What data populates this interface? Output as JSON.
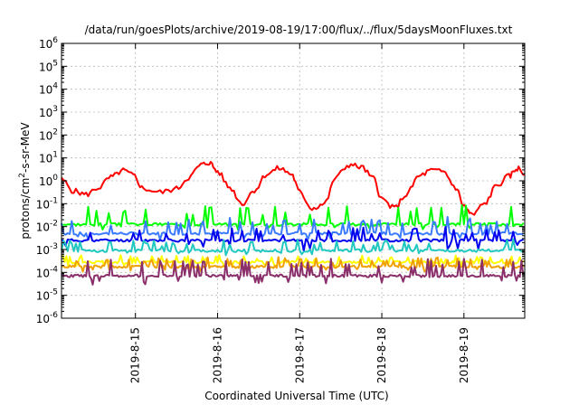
{
  "chart_data": {
    "type": "line",
    "title": "/data/run/goesPlots/archive/2019-08-19/17:00/flux/../flux/5daysMoonFluxes.txt",
    "xlabel": "Coordinated Universal Time (UTC)",
    "ylabel_main": "protons/cm",
    "ylabel_sup": "2",
    "ylabel_rest": "-s-sr-MeV",
    "y_scale": "log",
    "ylim_exp": [
      -6,
      6
    ],
    "xlim_days": [
      14.1,
      19.74
    ],
    "grid": true,
    "y_ticks": [
      {
        "exp": -6,
        "label": "10",
        "sup": "-6"
      },
      {
        "exp": -5,
        "label": "10",
        "sup": "-5"
      },
      {
        "exp": -4,
        "label": "10",
        "sup": "-4"
      },
      {
        "exp": -3,
        "label": "10",
        "sup": "-3"
      },
      {
        "exp": -2,
        "label": "10",
        "sup": "-2"
      },
      {
        "exp": -1,
        "label": "10",
        "sup": "-1"
      },
      {
        "exp": 0,
        "label": "10",
        "sup": "0"
      },
      {
        "exp": 1,
        "label": "10",
        "sup": "1"
      },
      {
        "exp": 2,
        "label": "10",
        "sup": "2"
      },
      {
        "exp": 3,
        "label": "10",
        "sup": "3"
      },
      {
        "exp": 4,
        "label": "10",
        "sup": "4"
      },
      {
        "exp": 5,
        "label": "10",
        "sup": "5"
      },
      {
        "exp": 6,
        "label": "10",
        "sup": "6"
      }
    ],
    "x_ticks": [
      {
        "day": 15,
        "label": "2019-8-15"
      },
      {
        "day": 16,
        "label": "2019-8-16"
      },
      {
        "day": 17,
        "label": "2019-8-17"
      },
      {
        "day": 18,
        "label": "2019-8-18"
      },
      {
        "day": 19,
        "label": "2019-8-19"
      }
    ],
    "series": [
      {
        "color": "#ff0000",
        "kind": "smooth",
        "points": [
          [
            14.1,
            0.05
          ],
          [
            14.25,
            -0.45
          ],
          [
            14.4,
            -0.6
          ],
          [
            14.55,
            -0.3
          ],
          [
            14.7,
            0.15
          ],
          [
            14.85,
            0.45
          ],
          [
            14.97,
            0.25
          ],
          [
            15.1,
            -0.35
          ],
          [
            15.3,
            -0.5
          ],
          [
            15.5,
            -0.35
          ],
          [
            15.65,
            0.15
          ],
          [
            15.8,
            0.7
          ],
          [
            15.9,
            0.8
          ],
          [
            16.0,
            0.4
          ],
          [
            16.15,
            -0.3
          ],
          [
            16.3,
            -1.0
          ],
          [
            16.45,
            -0.4
          ],
          [
            16.6,
            0.3
          ],
          [
            16.75,
            0.55
          ],
          [
            16.9,
            0.3
          ],
          [
            17.0,
            -0.5
          ],
          [
            17.15,
            -1.2
          ],
          [
            17.3,
            -1.0
          ],
          [
            17.45,
            0.2
          ],
          [
            17.6,
            0.7
          ],
          [
            17.75,
            0.6
          ],
          [
            17.9,
            0.1
          ],
          [
            18.0,
            -0.8
          ],
          [
            18.15,
            -1.2
          ],
          [
            18.3,
            -0.6
          ],
          [
            18.45,
            0.2
          ],
          [
            18.6,
            0.45
          ],
          [
            18.75,
            0.4
          ],
          [
            18.9,
            -0.3
          ],
          [
            19.0,
            -1.1
          ],
          [
            19.1,
            -1.5
          ],
          [
            19.25,
            -1.0
          ],
          [
            19.4,
            -0.2
          ],
          [
            19.55,
            0.2
          ],
          [
            19.65,
            0.55
          ],
          [
            19.74,
            0.3
          ]
        ],
        "amp": 0.12
      },
      {
        "color": "#00ff00",
        "kind": "noisy",
        "base": -1.9,
        "spike": 0.85,
        "dip": 0.2,
        "seed": 3,
        "step": 0.025
      },
      {
        "color": "#3b7bff",
        "kind": "noisy",
        "base": -2.3,
        "spike": 0.7,
        "dip": 0.25,
        "seed": 7,
        "step": 0.025
      },
      {
        "color": "#0000ee",
        "kind": "noisy",
        "base": -2.6,
        "spike": 0.55,
        "dip": 0.4,
        "seed": 11,
        "step": 0.025
      },
      {
        "color": "#20c8c0",
        "kind": "noisy",
        "base": -3.05,
        "spike": 0.45,
        "dip": 0.15,
        "seed": 13,
        "step": 0.025
      },
      {
        "color": "#ffff00",
        "kind": "noisy",
        "base": -3.55,
        "spike": 0.3,
        "dip": 0.2,
        "seed": 17,
        "step": 0.02
      },
      {
        "color": "#f0a000",
        "kind": "noisy",
        "base": -3.75,
        "spike": 0.4,
        "dip": 0.2,
        "seed": 19,
        "step": 0.02
      },
      {
        "color": "#8b2f6b",
        "kind": "noisy",
        "base": -4.15,
        "spike": 0.75,
        "dip": 0.35,
        "seed": 23,
        "step": 0.02
      }
    ]
  }
}
